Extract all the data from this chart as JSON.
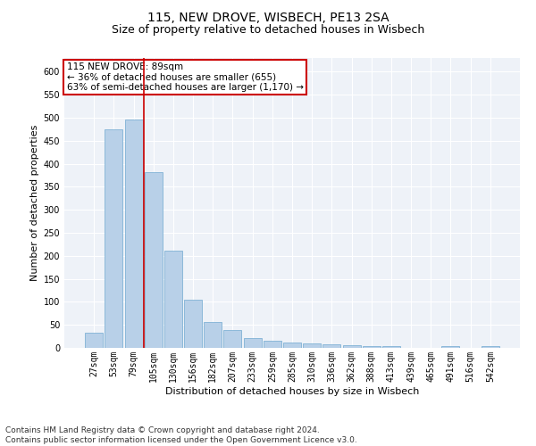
{
  "title": "115, NEW DROVE, WISBECH, PE13 2SA",
  "subtitle": "Size of property relative to detached houses in Wisbech",
  "xlabel": "Distribution of detached houses by size in Wisbech",
  "ylabel": "Number of detached properties",
  "bar_color": "#b8d0e8",
  "bar_edge_color": "#6fa8d0",
  "vline_color": "#cc0000",
  "vline_x": 2.5,
  "annotation_text": "115 NEW DROVE: 89sqm\n← 36% of detached houses are smaller (655)\n63% of semi-detached houses are larger (1,170) →",
  "annotation_box_color": "#ffffff",
  "annotation_box_edge": "#cc0000",
  "categories": [
    "27sqm",
    "53sqm",
    "79sqm",
    "105sqm",
    "130sqm",
    "156sqm",
    "182sqm",
    "207sqm",
    "233sqm",
    "259sqm",
    "285sqm",
    "310sqm",
    "336sqm",
    "362sqm",
    "388sqm",
    "413sqm",
    "439sqm",
    "465sqm",
    "491sqm",
    "516sqm",
    "542sqm"
  ],
  "values": [
    32,
    475,
    497,
    381,
    211,
    104,
    57,
    38,
    21,
    15,
    12,
    10,
    7,
    5,
    4,
    3,
    0,
    0,
    4,
    0,
    4
  ],
  "ylim": [
    0,
    630
  ],
  "yticks": [
    0,
    50,
    100,
    150,
    200,
    250,
    300,
    350,
    400,
    450,
    500,
    550,
    600
  ],
  "footer_text": "Contains HM Land Registry data © Crown copyright and database right 2024.\nContains public sector information licensed under the Open Government Licence v3.0.",
  "bg_color": "#eef2f8",
  "grid_color": "#ffffff",
  "title_fontsize": 10,
  "subtitle_fontsize": 9,
  "axis_label_fontsize": 8,
  "tick_fontsize": 7,
  "footer_fontsize": 6.5
}
